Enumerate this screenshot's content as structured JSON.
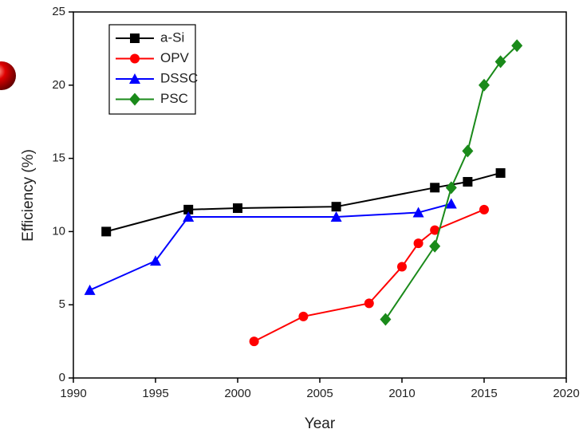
{
  "chart_data": {
    "type": "line",
    "xlabel": "Year",
    "ylabel": "Efficiency (%)",
    "xlim": [
      1990,
      2020
    ],
    "xticks": [
      1990,
      1995,
      2000,
      2005,
      2010,
      2015,
      2020
    ],
    "ylim": [
      0,
      25
    ],
    "yticks": [
      0,
      5,
      10,
      15,
      20,
      25
    ],
    "legend": "upper left",
    "series": [
      {
        "name": "a-Si",
        "color": "#000000",
        "marker": "square",
        "x": [
          1992,
          1997,
          2000,
          2006,
          2012,
          2014,
          2016
        ],
        "values": [
          10.0,
          11.5,
          11.6,
          11.7,
          13.0,
          13.4,
          14.0
        ]
      },
      {
        "name": "OPV",
        "color": "#ff0000",
        "marker": "circle",
        "x": [
          2001,
          2004,
          2008,
          2010,
          2011,
          2012,
          2015
        ],
        "values": [
          2.5,
          4.2,
          5.1,
          7.6,
          9.2,
          10.1,
          11.5
        ]
      },
      {
        "name": "DSSC",
        "color": "#0000ff",
        "marker": "triangle",
        "x": [
          1991,
          1995,
          1997,
          2006,
          2011,
          2013
        ],
        "values": [
          6.0,
          8.0,
          11.0,
          11.0,
          11.3,
          11.9
        ]
      },
      {
        "name": "PSC",
        "color": "#1a8a1a",
        "marker": "diamond",
        "x": [
          2009,
          2012,
          2013,
          2014,
          2015,
          2016,
          2017
        ],
        "values": [
          4.0,
          9.0,
          13.0,
          15.5,
          20.0,
          21.6,
          22.7
        ]
      }
    ]
  }
}
